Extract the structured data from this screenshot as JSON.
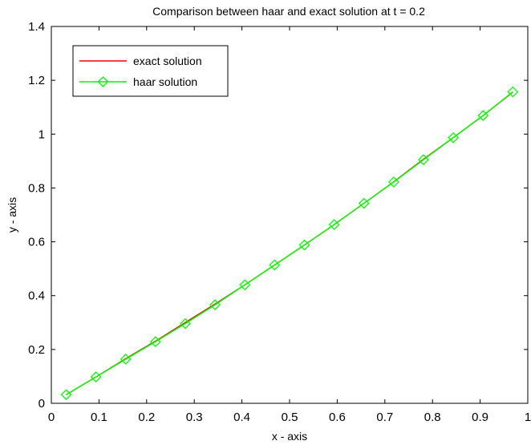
{
  "chart_data": {
    "type": "line",
    "title": "Comparison between haar and exact solution at t = 0.2",
    "xlabel": "x - axis",
    "ylabel": "y - axis",
    "xlim": [
      0,
      1
    ],
    "ylim": [
      0,
      1.4
    ],
    "xticks": [
      0,
      0.1,
      0.2,
      0.3,
      0.4,
      0.5,
      0.6,
      0.7,
      0.8,
      0.9,
      1
    ],
    "xtick_labels": [
      "0",
      "0.1",
      "0.2",
      "0.3",
      "0.4",
      "0.5",
      "0.6",
      "0.7",
      "0.8",
      "0.9",
      "1"
    ],
    "yticks": [
      0,
      0.2,
      0.4,
      0.6,
      0.8,
      1,
      1.2,
      1.4
    ],
    "ytick_labels": [
      "0",
      "0.2",
      "0.4",
      "0.6",
      "0.8",
      "1",
      "1.2",
      "1.4"
    ],
    "grid": false,
    "legend_position": "top-left",
    "series": [
      {
        "name": "exact solution",
        "color": "#ff0000",
        "style": "solid",
        "marker": "none",
        "x": [
          0.03125,
          0.09375,
          0.15625,
          0.21875,
          0.28125,
          0.34375,
          0.40625,
          0.46875,
          0.53125,
          0.59375,
          0.65625,
          0.71875,
          0.78125,
          0.84375,
          0.90625,
          0.96875
        ],
        "y": [
          0.032,
          0.098,
          0.166,
          0.231,
          0.3,
          0.369,
          0.44,
          0.514,
          0.588,
          0.664,
          0.743,
          0.823,
          0.907,
          0.987,
          1.069,
          1.156
        ]
      },
      {
        "name": "haar solution",
        "color": "#00ff00",
        "style": "solid",
        "marker": "diamond",
        "x": [
          0.03125,
          0.09375,
          0.15625,
          0.21875,
          0.28125,
          0.34375,
          0.40625,
          0.46875,
          0.53125,
          0.59375,
          0.65625,
          0.71875,
          0.78125,
          0.84375,
          0.90625,
          0.96875
        ],
        "y": [
          0.032,
          0.098,
          0.164,
          0.229,
          0.296,
          0.366,
          0.44,
          0.514,
          0.588,
          0.664,
          0.743,
          0.822,
          0.905,
          0.987,
          1.069,
          1.157
        ]
      }
    ]
  }
}
